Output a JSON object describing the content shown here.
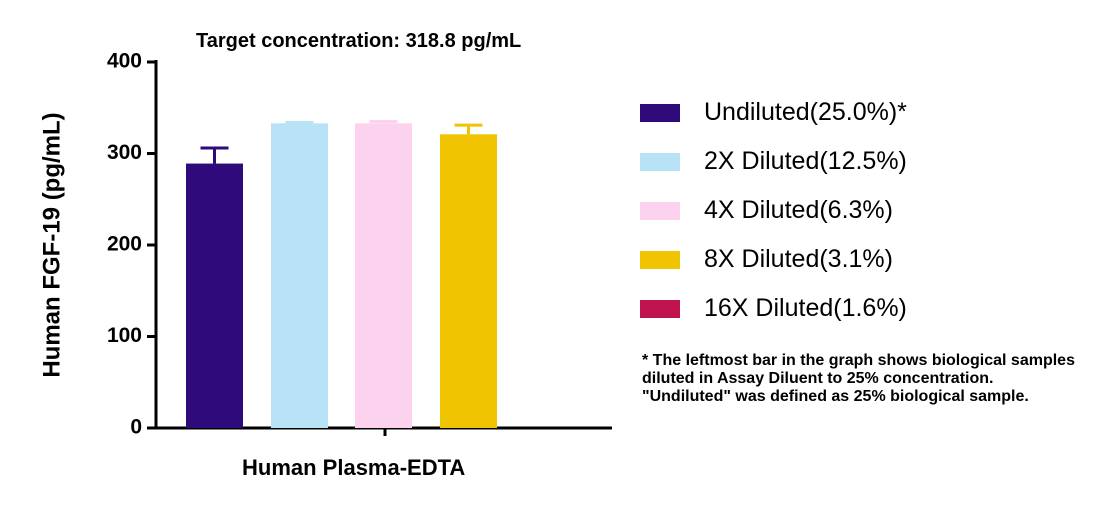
{
  "chart_data": {
    "type": "bar",
    "title": "Target concentration: 318.8 pg/mL",
    "xlabel": "Human Plasma-EDTA",
    "ylabel": "Human FGF-19  (pg/mL)",
    "ylim": [
      0,
      400
    ],
    "yticks": [
      "0",
      "100",
      "200",
      "300",
      "400"
    ],
    "grid": false,
    "legend_position": "right",
    "categories": [
      "Human Plasma-EDTA"
    ],
    "series": [
      {
        "name": "Undiluted(25.0%)*",
        "color": "#2e0a7a",
        "value": 289,
        "error": 17
      },
      {
        "name": "2X Diluted(12.5%)",
        "color": "#b8e3f7",
        "value": 333,
        "error": 1
      },
      {
        "name": "4X Diluted(6.3%)",
        "color": "#fcd2ee",
        "value": 333,
        "error": 2
      },
      {
        "name": "8X Diluted(3.1%)",
        "color": "#f0c400",
        "value": 321,
        "error": 10
      },
      {
        "name": "16X Diluted(1.6%)",
        "color": "#c0134f",
        "value": null,
        "error": null
      }
    ],
    "footnote": "* The leftmost bar in the graph shows biological samples diluted in Assay Diluent to 25% concentration. \"Undiluted\" was defined as 25% biological sample."
  }
}
